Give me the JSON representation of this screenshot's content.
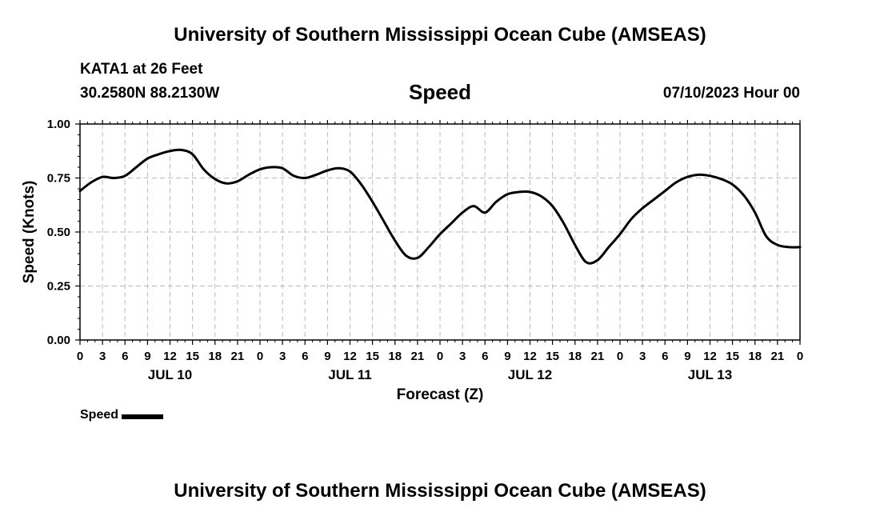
{
  "header": {
    "title": "University of Southern Mississippi Ocean Cube (AMSEAS)",
    "station": "KATA1 at 26 Feet",
    "coords": "30.2580N  88.2130W",
    "subtitle": "Speed",
    "datetime": "07/10/2023 Hour 00"
  },
  "footer": {
    "title": "University of Southern Mississippi Ocean Cube (AMSEAS)"
  },
  "legend": {
    "label": "Speed"
  },
  "chart_data": {
    "type": "line",
    "title": "Speed",
    "xlabel": "Forecast (Z)",
    "ylabel": "Speed (Knots)",
    "ylim": [
      0,
      1
    ],
    "xlim": [
      0,
      96
    ],
    "yticks": [
      "0.00",
      "0.25",
      "0.50",
      "0.75",
      "1.00"
    ],
    "ytick_values": [
      0,
      0.25,
      0.5,
      0.75,
      1
    ],
    "xtick_labels": [
      "0",
      "3",
      "6",
      "9",
      "12",
      "15",
      "18",
      "21",
      "0",
      "3",
      "6",
      "9",
      "12",
      "15",
      "18",
      "21",
      "0",
      "3",
      "6",
      "9",
      "12",
      "15",
      "18",
      "21",
      "0",
      "3",
      "6",
      "9",
      "12",
      "15",
      "18",
      "21",
      "0"
    ],
    "day_labels": [
      {
        "label": "JUL 10",
        "hour": 12
      },
      {
        "label": "JUL 11",
        "hour": 36
      },
      {
        "label": "JUL 12",
        "hour": 60
      },
      {
        "label": "JUL 13",
        "hour": 84
      }
    ],
    "grid": true,
    "color": "#000000",
    "series": [
      {
        "name": "Speed",
        "x": [
          0,
          1.5,
          3,
          4.5,
          6,
          7.5,
          9,
          10.5,
          12,
          13.5,
          15,
          16.5,
          18,
          19.5,
          21,
          22.5,
          24,
          25.5,
          27,
          28.5,
          30,
          31.5,
          33,
          34.5,
          36,
          37.5,
          39,
          40.5,
          42,
          43.5,
          45,
          46.5,
          48,
          49.5,
          51,
          52.5,
          54,
          55.5,
          57,
          58.5,
          60,
          61.5,
          63,
          64.5,
          66,
          67.5,
          69,
          70.5,
          72,
          73.5,
          75,
          76.5,
          78,
          79.5,
          81,
          82.5,
          84,
          85.5,
          87,
          88.5,
          90,
          91.5,
          93,
          94.5,
          96
        ],
        "values": [
          0.69,
          0.73,
          0.755,
          0.75,
          0.76,
          0.8,
          0.84,
          0.86,
          0.875,
          0.88,
          0.86,
          0.79,
          0.745,
          0.725,
          0.735,
          0.765,
          0.79,
          0.8,
          0.795,
          0.76,
          0.75,
          0.765,
          0.785,
          0.795,
          0.78,
          0.72,
          0.64,
          0.55,
          0.46,
          0.39,
          0.38,
          0.43,
          0.49,
          0.54,
          0.59,
          0.62,
          0.59,
          0.64,
          0.675,
          0.685,
          0.685,
          0.665,
          0.62,
          0.54,
          0.44,
          0.36,
          0.37,
          0.43,
          0.49,
          0.56,
          0.61,
          0.65,
          0.69,
          0.73,
          0.755,
          0.765,
          0.76,
          0.745,
          0.72,
          0.67,
          0.59,
          0.48,
          0.44,
          0.43,
          0.43
        ]
      }
    ]
  }
}
